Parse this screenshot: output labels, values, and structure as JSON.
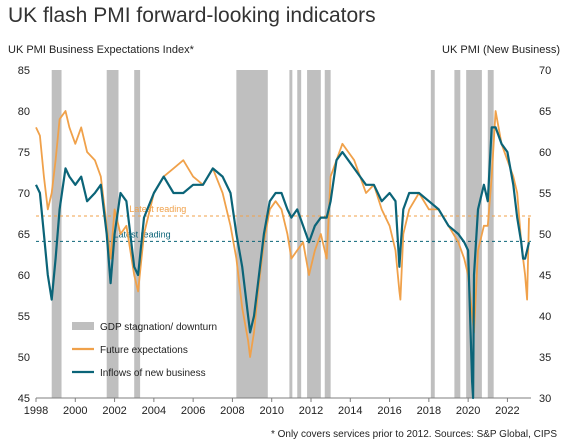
{
  "title": "UK flash PMI forward-looking indicators",
  "left_axis_title": "UK PMI Business Expectations Index*",
  "right_axis_title": "UK PMI (New Business)",
  "footnote": "* Only covers services prior to 2012. Sources: S&P Global, CIPS",
  "colors": {
    "expectations": "#f0a14a",
    "new_business": "#0b6478",
    "shading": "#bfbfbf",
    "axis": "#7f7f7f"
  },
  "chart_data": {
    "type": "line",
    "x_range": [
      1998,
      2023.2
    ],
    "x_ticks": [
      "1998",
      "2000",
      "2002",
      "2004",
      "2006",
      "2008",
      "2010",
      "2012",
      "2014",
      "2016",
      "2018",
      "2020",
      "2022"
    ],
    "y_left": {
      "range": [
        45,
        85
      ],
      "ticks": [
        "45",
        "50",
        "55",
        "60",
        "65",
        "70",
        "75",
        "80",
        "85"
      ]
    },
    "y_right": {
      "range": [
        30,
        70
      ],
      "ticks": [
        "30",
        "35",
        "40",
        "45",
        "50",
        "55",
        "60",
        "65",
        "70"
      ]
    },
    "shaded_periods": [
      {
        "start": 1998.8,
        "end": 1999.3
      },
      {
        "start": 2001.6,
        "end": 2002.2
      },
      {
        "start": 2003.0,
        "end": 2003.3
      },
      {
        "start": 2008.2,
        "end": 2009.8
      },
      {
        "start": 2010.9,
        "end": 2011.05
      },
      {
        "start": 2011.3,
        "end": 2011.5
      },
      {
        "start": 2011.8,
        "end": 2012.5
      },
      {
        "start": 2012.7,
        "end": 2013.0
      },
      {
        "start": 2018.1,
        "end": 2018.3
      },
      {
        "start": 2019.3,
        "end": 2019.6
      },
      {
        "start": 2019.9,
        "end": 2020.7
      },
      {
        "start": 2021.0,
        "end": 2021.3
      }
    ],
    "reference_lines": [
      {
        "axis": "left",
        "value": 67.2,
        "label": "Latest reading",
        "color": "#f0a14a"
      },
      {
        "axis": "right",
        "value": 49.1,
        "label": "Latest reading",
        "color": "#0b6478"
      }
    ],
    "series": [
      {
        "name": "Future expectations",
        "axis": "left",
        "x": [
          1998.0,
          1998.2,
          1998.4,
          1998.6,
          1998.8,
          1999.0,
          1999.2,
          1999.5,
          1999.7,
          2000.0,
          2000.3,
          2000.6,
          2001.0,
          2001.3,
          2001.6,
          2001.8,
          2002.0,
          2002.3,
          2002.6,
          2003.0,
          2003.2,
          2003.5,
          2004.0,
          2004.5,
          2005.0,
          2005.5,
          2006.0,
          2006.5,
          2007.0,
          2007.5,
          2007.9,
          2008.2,
          2008.5,
          2008.8,
          2008.9,
          2009.1,
          2009.3,
          2009.6,
          2009.9,
          2010.2,
          2010.5,
          2010.8,
          2011.0,
          2011.3,
          2011.6,
          2011.9,
          2012.2,
          2012.5,
          2012.8,
          2013.0,
          2013.3,
          2013.6,
          2013.9,
          2014.2,
          2014.5,
          2014.8,
          2015.2,
          2015.6,
          2016.0,
          2016.3,
          2016.5,
          2016.55,
          2016.7,
          2017.0,
          2017.5,
          2018.0,
          2018.5,
          2019.0,
          2019.5,
          2019.8,
          2020.0,
          2020.3,
          2020.5,
          2020.8,
          2021.0,
          2021.2,
          2021.4,
          2021.7,
          2022.0,
          2022.3,
          2022.5,
          2022.7,
          2022.8,
          2022.9,
          2023.0,
          2023.1
        ],
        "values": [
          78,
          77,
          72,
          68,
          70,
          74,
          79,
          80,
          78,
          76,
          78,
          75,
          74,
          72,
          66,
          62,
          68,
          65,
          66,
          60,
          58,
          65,
          70,
          72,
          73,
          74,
          72,
          71,
          73,
          70,
          66,
          62,
          56,
          52,
          50,
          53,
          58,
          64,
          68,
          69,
          68,
          65,
          62,
          63,
          64,
          60,
          63,
          65,
          62,
          72,
          74,
          76,
          75,
          74,
          72,
          70,
          71,
          68,
          66,
          63,
          58,
          57,
          65,
          68,
          70,
          68,
          68,
          66,
          64,
          62,
          60,
          53,
          63,
          66,
          66,
          72,
          80,
          76,
          74,
          72,
          70,
          64,
          62,
          60,
          57,
          67
        ]
      },
      {
        "name": "Inflows of new business",
        "axis": "right",
        "x": [
          1998.0,
          1998.2,
          1998.4,
          1998.6,
          1998.8,
          1999.0,
          1999.2,
          1999.5,
          1999.7,
          2000.0,
          2000.3,
          2000.6,
          2001.0,
          2001.3,
          2001.6,
          2001.8,
          2002.0,
          2002.3,
          2002.6,
          2003.0,
          2003.2,
          2003.5,
          2004.0,
          2004.5,
          2005.0,
          2005.5,
          2006.0,
          2006.5,
          2007.0,
          2007.5,
          2007.9,
          2008.2,
          2008.5,
          2008.8,
          2008.9,
          2009.1,
          2009.3,
          2009.6,
          2009.9,
          2010.2,
          2010.5,
          2010.8,
          2011.0,
          2011.3,
          2011.6,
          2011.9,
          2012.2,
          2012.5,
          2012.8,
          2013.0,
          2013.3,
          2013.6,
          2013.9,
          2014.2,
          2014.5,
          2014.8,
          2015.2,
          2015.6,
          2016.0,
          2016.3,
          2016.5,
          2016.55,
          2016.7,
          2017.0,
          2017.5,
          2018.0,
          2018.5,
          2019.0,
          2019.5,
          2019.8,
          2020.0,
          2020.2,
          2020.25,
          2020.3,
          2020.5,
          2020.8,
          2021.0,
          2021.2,
          2021.4,
          2021.7,
          2022.0,
          2022.3,
          2022.5,
          2022.7,
          2022.8,
          2022.9,
          2023.0,
          2023.1
        ],
        "values": [
          56,
          55,
          50,
          45,
          42,
          47,
          53,
          58,
          57,
          56,
          57,
          54,
          55,
          56,
          50,
          44,
          50,
          55,
          54,
          46,
          45,
          52,
          55,
          57,
          55,
          55,
          56,
          56,
          58,
          57,
          55,
          50,
          46,
          40,
          38,
          40,
          44,
          50,
          54,
          55,
          55,
          53,
          52,
          53,
          51,
          49,
          51,
          52,
          52,
          54,
          59,
          60,
          59,
          58,
          57,
          56,
          56,
          54,
          55,
          54,
          46,
          48,
          53,
          55,
          55,
          54,
          53,
          51,
          50,
          49,
          48,
          32,
          30,
          45,
          53,
          56,
          54,
          63,
          63,
          61,
          60,
          56,
          52,
          49,
          47,
          47,
          48,
          49
        ]
      }
    ],
    "legend": [
      {
        "label": "GDP stagnation/ downturn",
        "kind": "box"
      },
      {
        "label": "Future expectations",
        "kind": "line"
      },
      {
        "label": "Inflows of new business",
        "kind": "line"
      }
    ]
  }
}
